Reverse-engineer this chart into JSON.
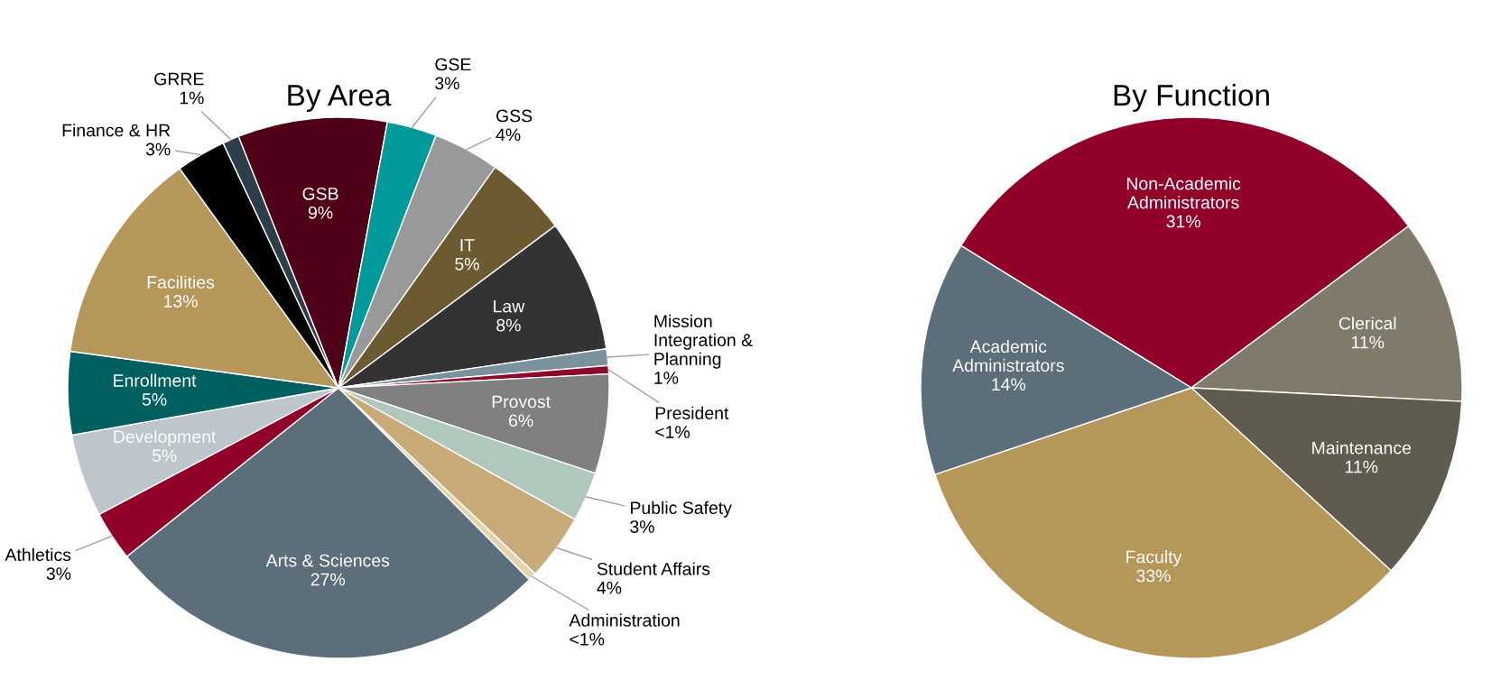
{
  "chart_data": [
    {
      "type": "pie",
      "title": "By Area",
      "categories": [
        "Administration",
        "Arts & Sciences",
        "Athletics",
        "Development",
        "Enrollment",
        "Facilities",
        "Finance & HR",
        "GRRE",
        "GSB",
        "GSE",
        "GSS",
        "IT",
        "Law",
        "Mission Integration & Planning",
        "President",
        "Provost",
        "Public Safety",
        "Student Affairs"
      ],
      "values": [
        0.5,
        27,
        3,
        5,
        5,
        13,
        3,
        1,
        9,
        3,
        4,
        5,
        8,
        1,
        0.5,
        6,
        3,
        4
      ],
      "value_labels": [
        "<1%",
        "27%",
        "3%",
        "5%",
        "5%",
        "13%",
        "3%",
        "1%",
        "9%",
        "3%",
        "4%",
        "5%",
        "8%",
        "1%",
        "<1%",
        "6%",
        "3%",
        "4%"
      ],
      "colors": [
        "#e6d3ae",
        "#5b6e7a",
        "#900028",
        "#bcc6cc",
        "#00605f",
        "#b6975a",
        "#000000",
        "#2c3e4a",
        "#4f0018",
        "#009a9a",
        "#999999",
        "#6c5a30",
        "#333333",
        "#7a929e",
        "#8b0a2a",
        "#808080",
        "#b0c8bc",
        "#c8ab78"
      ]
    },
    {
      "type": "pie",
      "title": "By Function",
      "categories": [
        "Non-Academic Administrators",
        "Clerical",
        "Maintenance",
        "Faculty",
        "Academic Administrators"
      ],
      "values": [
        31,
        11,
        11,
        33,
        14
      ],
      "value_labels": [
        "31%",
        "11%",
        "11%",
        "33%",
        "14%"
      ],
      "colors": [
        "#900028",
        "#7f7a6a",
        "#5f5b4e",
        "#b6975a",
        "#5b6e7a"
      ]
    }
  ]
}
